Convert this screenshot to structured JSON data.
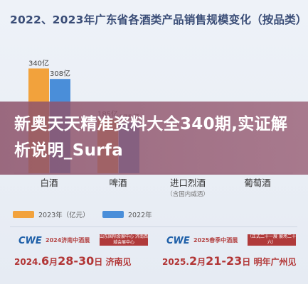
{
  "title": "2022、2023年广东省各酒类产品销售规模变化（按品类）",
  "chart_data": {
    "type": "bar",
    "categories": [
      "白酒",
      "啤酒",
      "进口烈酒",
      "葡萄酒"
    ],
    "category_notes": [
      "",
      "",
      "（含国内威酒）",
      ""
    ],
    "series": [
      {
        "name": "2023年（亿元）",
        "values": [
          340,
          185,
          null,
          null
        ],
        "labels": [
          "340亿",
          "185亿",
          "",
          ""
        ],
        "color": "#f2a23c"
      },
      {
        "name": "2022年",
        "values": [
          308,
          175,
          null,
          null
        ],
        "labels": [
          "308亿",
          "175亿",
          "",
          ""
        ],
        "color": "#4a8ed9"
      }
    ],
    "ylim": [
      0,
      380
    ],
    "grid": false,
    "legend": "bottom-left"
  },
  "overlay": {
    "text": "新奥天天精准资料大全340期,实证解析说明_Surfa"
  },
  "ads": [
    {
      "logo": "CWE",
      "name": "2024济南中酒展",
      "badge": "山东国际会展中心 济南西城会展中心",
      "date_pre": "2024.",
      "month": "6",
      "date_mid": "28-",
      "day_end": "30",
      "date_post": "日 济南见"
    },
    {
      "logo": "CWE",
      "name": "2025春季中酒展",
      "badge": "（正式二十一展 展场二十六）",
      "date_pre": "2025.",
      "month": "2",
      "date_mid": "21-",
      "day_end": "23",
      "date_post": "日 明年广州见"
    }
  ]
}
